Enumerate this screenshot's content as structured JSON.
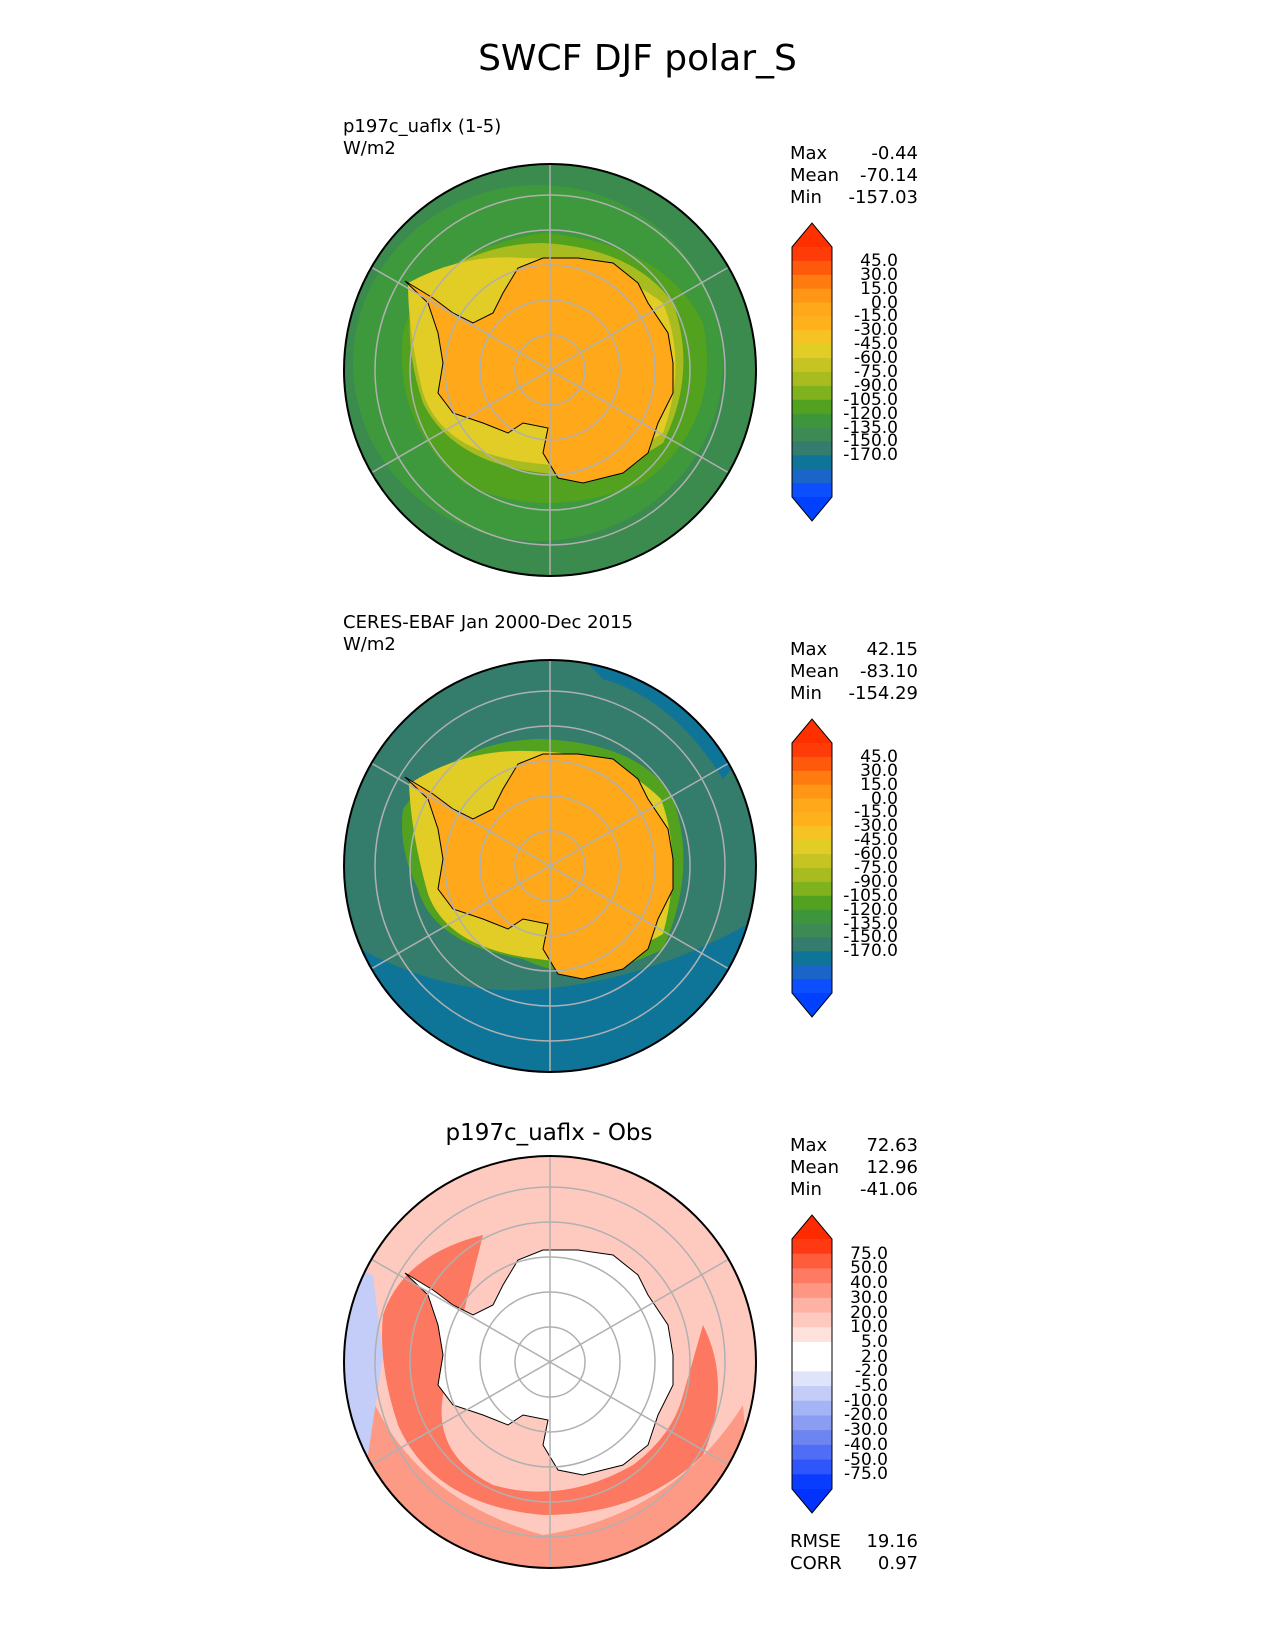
{
  "title": "SWCF DJF polar_S",
  "panels": [
    {
      "id": "test",
      "label_lines": [
        "p197c_uaflx (1-5)",
        "W/m2"
      ],
      "stats": [
        {
          "label": "Max",
          "value": "-0.44"
        },
        {
          "label": "Mean",
          "value": "-70.14"
        },
        {
          "label": "Min",
          "value": "-157.03"
        }
      ],
      "colorbar": {
        "ticks": [
          "45.0",
          "30.0",
          "15.0",
          "0.0",
          "-15.0",
          "-30.0",
          "-45.0",
          "-60.0",
          "-75.0",
          "-90.0",
          "-105.0",
          "-120.0",
          "-135.0",
          "-150.0",
          "-170.0"
        ],
        "colors": [
          "#ff3b0a",
          "#ff5a0c",
          "#ff7a0f",
          "#ff9615",
          "#ffa81a",
          "#ffb11c",
          "#f6c324",
          "#e2cc26",
          "#c5c422",
          "#a8bb1f",
          "#7fb21d",
          "#52a21f",
          "#3e953b",
          "#3d8a55",
          "#347c6b",
          "#0e7599",
          "#1b64c8",
          "#0b4fff"
        ],
        "top_color": "#ff3000",
        "bottom_color": "#0040ff"
      }
    },
    {
      "id": "obs",
      "label_lines": [
        "CERES-EBAF Jan 2000-Dec 2015",
        "W/m2"
      ],
      "stats": [
        {
          "label": "Max",
          "value": "42.15"
        },
        {
          "label": "Mean",
          "value": "-83.10"
        },
        {
          "label": "Min",
          "value": "-154.29"
        }
      ],
      "colorbar": {
        "ticks": [
          "45.0",
          "30.0",
          "15.0",
          "0.0",
          "-15.0",
          "-30.0",
          "-45.0",
          "-60.0",
          "-75.0",
          "-90.0",
          "-105.0",
          "-120.0",
          "-135.0",
          "-150.0",
          "-170.0"
        ],
        "colors": [
          "#ff3b0a",
          "#ff5a0c",
          "#ff7a0f",
          "#ff9615",
          "#ffa81a",
          "#ffb11c",
          "#f6c324",
          "#e2cc26",
          "#c5c422",
          "#a8bb1f",
          "#7fb21d",
          "#52a21f",
          "#3e953b",
          "#3d8a55",
          "#347c6b",
          "#0e7599",
          "#1b64c8",
          "#0b4fff"
        ],
        "top_color": "#ff3000",
        "bottom_color": "#0040ff"
      }
    },
    {
      "id": "diff",
      "title": "p197c_uaflx - Obs",
      "stats": [
        {
          "label": "Max",
          "value": "72.63"
        },
        {
          "label": "Mean",
          "value": "12.96"
        },
        {
          "label": "Min",
          "value": "-41.06"
        }
      ],
      "footer_stats": [
        {
          "label": "RMSE",
          "value": "19.16"
        },
        {
          "label": "CORR",
          "value": "0.97"
        }
      ],
      "colorbar": {
        "ticks": [
          "75.0",
          "50.0",
          "40.0",
          "30.0",
          "20.0",
          "10.0",
          "5.0",
          "2.0",
          "-2.0",
          "-5.0",
          "-10.0",
          "-20.0",
          "-30.0",
          "-40.0",
          "-50.0",
          "-75.0"
        ],
        "colors": [
          "#ff3a12",
          "#ff5c3c",
          "#fe7a62",
          "#fd9784",
          "#fdb2a3",
          "#fecabf",
          "#ffe2db",
          "#ffffff",
          "#ffffff",
          "#dfe4fb",
          "#c3cdf7",
          "#a5b4f5",
          "#8b9df2",
          "#6d85f0",
          "#4f6df5",
          "#2f55fb",
          "#0a3cff"
        ],
        "top_color": "#ff2a00",
        "bottom_color": "#0033ff"
      }
    }
  ],
  "colors": {
    "ocean_far": "#3b8a4e",
    "ocean_mid": "#3f9a3c",
    "ice_edge": "#7fb21d",
    "land": "#ffa81a",
    "obs_ocean": "#0e7599",
    "diff_ocean": "#fd9a86",
    "diff_strong": "#fb6a4f",
    "diff_land": "#ffffff",
    "grid": "#b0b0b0"
  }
}
